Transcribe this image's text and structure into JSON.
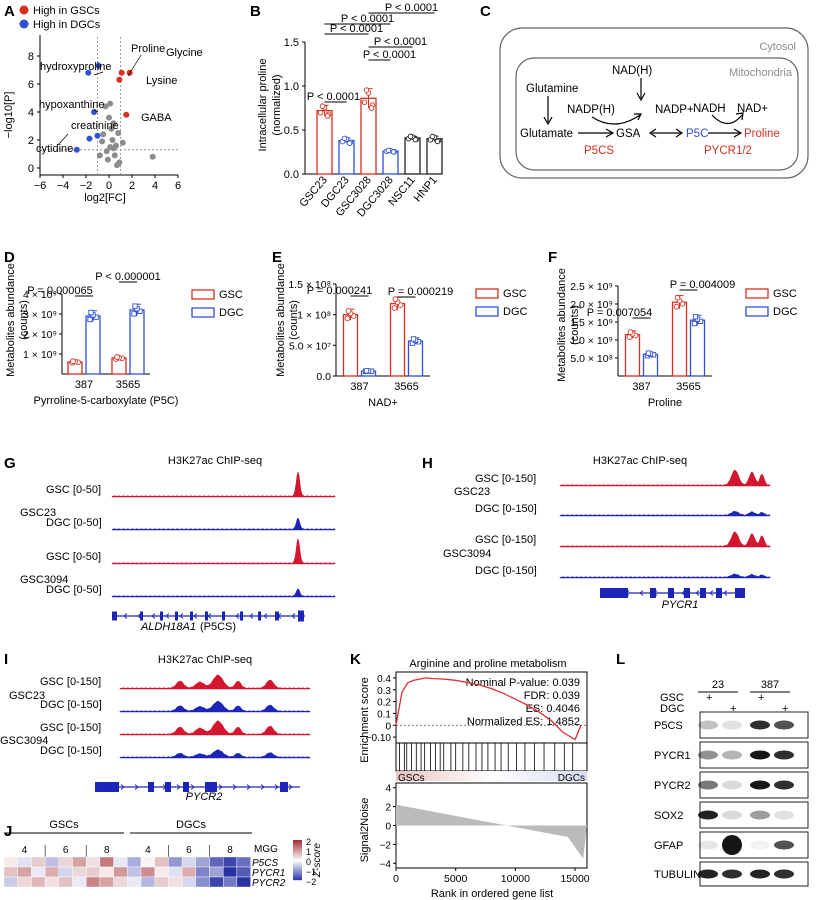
{
  "panels": {
    "A": "A",
    "B": "B",
    "C": "C",
    "D": "D",
    "E": "E",
    "F": "F",
    "G": "G",
    "H": "H",
    "I": "I",
    "J": "J",
    "K": "K",
    "L": "L"
  },
  "colors": {
    "red": "#d7301f",
    "blue": "#3050d8",
    "grey": "#8c8c8c",
    "dark": "#222222"
  },
  "panelA": {
    "legend": [
      "High in GSCs",
      "High in DGCs"
    ],
    "ylabel": "−log10[P]",
    "xlabel": "log2[FC]",
    "labels": [
      "Proline",
      "Glycine",
      "Lysine",
      "GABA",
      "hydroxyproline",
      "hypoxanthine",
      "creatinine",
      "cytidine"
    ]
  },
  "panelB": {
    "ylabel": "Intracellular proline",
    "ylabel2": "(normalized)"
  },
  "panelC": {
    "cytosol": "Cytosol",
    "mito": "Mitochondria",
    "nodes": [
      "Glutamine",
      "NAD(H)",
      "NADP(H)",
      "NADP+",
      "Glutamate",
      "GSA",
      "P5C",
      "NADH",
      "NAD+",
      "Proline",
      "P5CS",
      "PYCR1/2"
    ]
  },
  "panelDEF": {
    "ylabel": "Metabolites abundance",
    "ylabel2": "(counts)",
    "legend": [
      "GSC",
      "DGC"
    ]
  },
  "chipseq": {
    "title": "H3K27ac ChIP-seq",
    "G": {
      "rows": [
        "GSC [0-50]",
        "DGC [0-50]",
        "GSC [0-50]",
        "DGC [0-50]"
      ],
      "lines": [
        "GSC23",
        "GSC3094"
      ],
      "gene": "ALDH18A1",
      "gene_suffix": "(P5CS)"
    },
    "H": {
      "rows": [
        "GSC [0-150]",
        "DGC [0-150]",
        "GSC [0-150]",
        "DGC [0-150]"
      ],
      "lines": [
        "GSC23",
        "GSC3094"
      ],
      "gene": "PYCR1"
    },
    "I": {
      "rows": [
        "GSC [0-150]",
        "DGC [0-150]",
        "GSC [0-150]",
        "DGC [0-150]"
      ],
      "lines": [
        "GSC23",
        "GSC3094"
      ],
      "gene": "PYCR2"
    }
  },
  "panelJ": {
    "groups": [
      "GSCs",
      "DGCs"
    ],
    "mgg": [
      "4",
      "6",
      "8",
      "4",
      "6",
      "8"
    ],
    "mgg_label": "MGG",
    "genes": [
      "P5CS",
      "PYCR1",
      "PYCR2"
    ],
    "scale_label": "Z-score",
    "scale_ticks": [
      "2",
      "1",
      "0",
      "−1",
      "−2"
    ],
    "cells": [
      [
        0.2,
        -0.3,
        0.5,
        -0.6,
        0.4,
        0.9,
        0.3,
        1.3,
        -0.2,
        -0.8,
        0.1,
        0.6,
        -1.0,
        -0.4,
        -0.9,
        -1.5,
        -1.8,
        -1.4
      ],
      [
        0.6,
        0.9,
        -0.2,
        0.8,
        -0.4,
        0.4,
        0.5,
        0.2,
        1.0,
        -0.6,
        1.1,
        0.2,
        -0.3,
        0.8,
        -1.2,
        -0.9,
        -2.0,
        -1.6
      ],
      [
        -0.5,
        0.4,
        0.7,
        0.3,
        0.6,
        -0.2,
        1.2,
        0.9,
        0.4,
        -0.2,
        -0.7,
        0.5,
        0.3,
        -0.4,
        -1.1,
        -1.8,
        -1.3,
        -2.0
      ]
    ]
  },
  "panelK": {
    "title": "Arginine and proline metabolism",
    "stats": [
      "Nominal P-value: 0.039",
      "FDR: 0.039",
      "ES: 0.4046",
      "Normalized ES: 1.4852"
    ],
    "ylabel_top": "Enrichment score",
    "ylabel_bottom": "Signal2Noise",
    "xlabel": "Rank in ordered gene list",
    "bar_left": "GSCs",
    "bar_right": "DGCs"
  },
  "panelL": {
    "lines": [
      "23",
      "387"
    ],
    "conds": [
      "GSC",
      "DGC"
    ],
    "plus": "+",
    "proteins": [
      "P5CS",
      "PYCR1",
      "PYCR2",
      "SOX2",
      "GFAP",
      "TUBULIN"
    ]
  },
  "chart_data": [
    {
      "panel": "A",
      "type": "scatter",
      "xlabel": "log2[FC]",
      "ylabel": "−log10[P]",
      "xlim": [
        -6,
        6
      ],
      "ylim": [
        -0.5,
        9.5
      ],
      "xticks": [
        -6,
        -4,
        -2,
        0,
        2,
        4,
        6
      ],
      "yticks": [
        0,
        2,
        4,
        6,
        8
      ],
      "series": [
        {
          "name": "High in GSCs",
          "points": [
            [
              1.1,
              6.8
            ],
            [
              1.8,
              6.8
            ],
            [
              1.5,
              3.8
            ],
            [
              0.9,
              6.3
            ]
          ]
        },
        {
          "name": "High in DGCs",
          "points": [
            [
              -0.9,
              7.3
            ],
            [
              -1.8,
              6.8
            ],
            [
              -1.3,
              4.0
            ],
            [
              -1.0,
              2.3
            ],
            [
              -2.8,
              1.3
            ],
            [
              -1.7,
              2.1
            ]
          ]
        },
        {
          "points": [
            [
              -0.3,
              4.4
            ],
            [
              0.1,
              4.6
            ],
            [
              0.4,
              3.2
            ],
            [
              -0.5,
              2.4
            ],
            [
              0.3,
              2.0
            ],
            [
              0.6,
              1.6
            ],
            [
              -0.2,
              1.2
            ],
            [
              0.5,
              0.9
            ],
            [
              0.9,
              0.4
            ],
            [
              -0.6,
              1.9
            ],
            [
              0.2,
              2.8
            ],
            [
              -0.1,
              0.6
            ],
            [
              1.2,
              1.8
            ],
            [
              0.7,
              0.2
            ],
            [
              0.4,
              1.4
            ],
            [
              3.8,
              0.8
            ],
            [
              -0.8,
              0.9
            ],
            [
              0.0,
              3.6
            ],
            [
              0.8,
              2.5
            ],
            [
              0.1,
              1.5
            ]
          ]
        }
      ]
    },
    {
      "panel": "B",
      "type": "bar",
      "ylabel": "Intracellular proline (normalized)",
      "categories": [
        "GSC23",
        "DGC23",
        "GSC3028",
        "DGC3028",
        "NSC11",
        "HNP1"
      ],
      "values": [
        0.72,
        0.38,
        0.86,
        0.26,
        0.41,
        0.4
      ],
      "errors": [
        0.06,
        0.03,
        0.11,
        0.01,
        0.02,
        0.03
      ],
      "ylim": [
        0,
        1.5
      ],
      "yticks": [
        0.0,
        0.5,
        1.0,
        1.5
      ],
      "comparisons": [
        "P < 0.0001",
        "P < 0.0001",
        "P < 0.0001",
        "P < 0.0001",
        "P < 0.0001",
        "P < 0.0001"
      ]
    },
    {
      "panel": "D",
      "type": "bar",
      "xlabel": "Pyrroline-5-carboxylate (P5C)",
      "categories": [
        "387",
        "3565"
      ],
      "series": [
        {
          "name": "GSC",
          "values": [
            600000000,
            800000000
          ]
        },
        {
          "name": "DGC",
          "values": [
            2900000000,
            3200000000
          ]
        }
      ],
      "yticks": [
        "1 × 10⁹",
        "2 × 10⁹",
        "3 × 10⁹",
        "4 × 10⁹"
      ],
      "ylim": [
        0,
        4000000000
      ],
      "comparisons": [
        "P = 0.000065",
        "P < 0.000001"
      ]
    },
    {
      "panel": "E",
      "type": "bar",
      "xlabel": "NAD+",
      "categories": [
        "387",
        "3565"
      ],
      "series": [
        {
          "name": "GSC",
          "values": [
            100000000,
            118000000
          ]
        },
        {
          "name": "DGC",
          "values": [
            8000000,
            57000000
          ]
        }
      ],
      "yticks": [
        "0.0",
        "5.0 × 10⁷",
        "1 × 10⁸",
        "1.5 × 10⁸"
      ],
      "ylim": [
        0,
        150000000
      ],
      "comparisons": [
        "P = 0.000241",
        "P = 0.000219"
      ]
    },
    {
      "panel": "F",
      "type": "bar",
      "xlabel": "Proline",
      "categories": [
        "387",
        "3565"
      ],
      "series": [
        {
          "name": "GSC",
          "values": [
            1150000000,
            2050000000
          ]
        },
        {
          "name": "DGC",
          "values": [
            600000000,
            1550000000
          ]
        }
      ],
      "yticks": [
        "5.0 × 10⁸",
        "1.0 × 10⁹",
        "1.5 × 10⁹",
        "2.0 × 10⁹",
        "2.5 × 10⁹"
      ],
      "ylim": [
        0,
        2500000000
      ],
      "comparisons": [
        "P = 0.007054",
        "P = 0.004009"
      ]
    },
    {
      "panel": "K",
      "type": "line",
      "xlabel": "Rank in ordered gene list",
      "ylabel": "Enrichment score",
      "xticks": [
        0,
        5000,
        10000,
        15000
      ],
      "yticks_top": [
        0.4,
        0.3,
        0.2,
        0.1,
        0.0,
        -0.1
      ],
      "yticks_bottom": [
        4,
        2,
        0,
        -2,
        -4
      ],
      "ylim": [
        -0.15,
        0.45
      ],
      "xlim": [
        0,
        16000
      ],
      "x": [
        0,
        500,
        1000,
        1500,
        2000,
        2500,
        3000,
        4000,
        5000,
        6000,
        7000,
        8000,
        9000,
        10000,
        11000,
        12000,
        13000,
        14000,
        15000,
        15500
      ],
      "y": [
        0.0,
        0.28,
        0.36,
        0.38,
        0.39,
        0.4,
        0.395,
        0.39,
        0.38,
        0.36,
        0.34,
        0.31,
        0.27,
        0.22,
        0.17,
        0.11,
        0.04,
        -0.06,
        -0.12,
        0.0
      ]
    }
  ]
}
